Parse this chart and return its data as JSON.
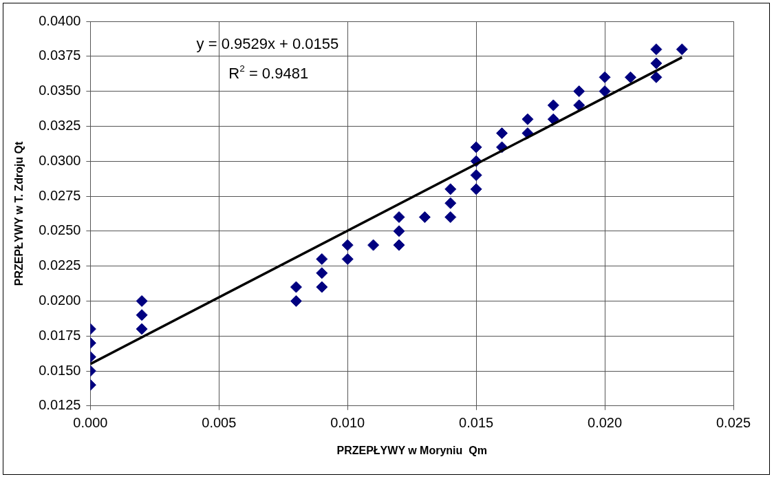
{
  "chart_data": {
    "type": "scatter",
    "xlabel": "PRZEPŁYWY w Moryniu  Qm",
    "ylabel": "PRZEPŁYWY w T. Zdroju Qt",
    "annotations": [
      "y = 0.9529x + 0.0155",
      "R$^{2}$ = 0.9481"
    ],
    "xlim": [
      0,
      0.025
    ],
    "xticks": [
      {
        "value": 0,
        "label": "0.000"
      },
      {
        "value": 0.005,
        "label": "0.005"
      },
      {
        "value": 0.01,
        "label": "0.010"
      },
      {
        "value": 0.015,
        "label": "0.015"
      },
      {
        "value": 0.02,
        "label": "0.020"
      },
      {
        "value": 0.025,
        "label": "0.025"
      }
    ],
    "ylim": [
      0.0125,
      0.04
    ],
    "yticks": [
      {
        "value": 0.0125,
        "label": "0.0125"
      },
      {
        "value": 0.015,
        "label": "0.0150"
      },
      {
        "value": 0.0175,
        "label": "0.0175"
      },
      {
        "value": 0.02,
        "label": "0.0200"
      },
      {
        "value": 0.0225,
        "label": "0.0225"
      },
      {
        "value": 0.025,
        "label": "0.0250"
      },
      {
        "value": 0.0275,
        "label": "0.0275"
      },
      {
        "value": 0.03,
        "label": "0.0300"
      },
      {
        "value": 0.0325,
        "label": "0.0325"
      },
      {
        "value": 0.035,
        "label": "0.0350"
      },
      {
        "value": 0.0375,
        "label": "0.0375"
      },
      {
        "value": 0.04,
        "label": "0.0400"
      }
    ],
    "grid": true,
    "legend": false,
    "series": [
      {
        "type": "scatter",
        "marker": "diamond",
        "color": "#000080",
        "x": [
          0,
          0,
          0,
          0,
          0,
          0.002,
          0.002,
          0.002,
          0.008,
          0.008,
          0.009,
          0.009,
          0.009,
          0.01,
          0.01,
          0.011,
          0.012,
          0.012,
          0.012,
          0.013,
          0.014,
          0.014,
          0.014,
          0.015,
          0.015,
          0.015,
          0.015,
          0.016,
          0.016,
          0.017,
          0.017,
          0.018,
          0.018,
          0.019,
          0.019,
          0.02,
          0.02,
          0.021,
          0.022,
          0.022,
          0.022,
          0.023
        ],
        "values": [
          0.014,
          0.015,
          0.016,
          0.017,
          0.018,
          0.018,
          0.019,
          0.02,
          0.02,
          0.021,
          0.021,
          0.022,
          0.023,
          0.023,
          0.024,
          0.024,
          0.024,
          0.025,
          0.026,
          0.026,
          0.026,
          0.027,
          0.028,
          0.028,
          0.029,
          0.03,
          0.031,
          0.031,
          0.032,
          0.032,
          0.033,
          0.033,
          0.034,
          0.034,
          0.035,
          0.035,
          0.036,
          0.036,
          0.036,
          0.037,
          0.038,
          0.038
        ]
      },
      {
        "type": "line",
        "marker": "none",
        "color": "#000000",
        "x": [
          0,
          0.023
        ],
        "values": [
          0.0155,
          0.03742
        ]
      }
    ]
  }
}
